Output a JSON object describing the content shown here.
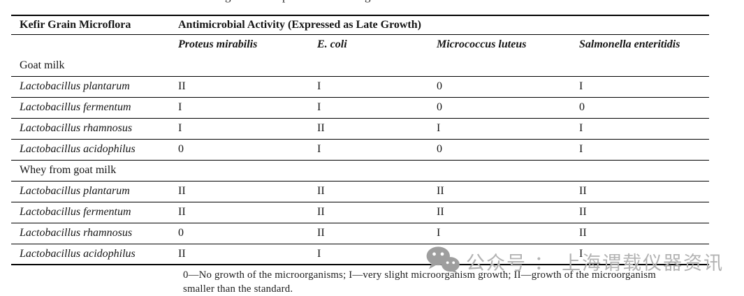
{
  "clipped_caption": {
    "fragments": [
      {
        "char": "g"
      },
      {
        "char": "p"
      },
      {
        "char": "g"
      }
    ]
  },
  "table": {
    "col1_header": "Kefir Grain Microflora",
    "group_header": "Antimicrobial Activity (Expressed as Late Growth)",
    "columns": [
      "Proteus mirabilis",
      "E. coli",
      "Micrococcus luteus",
      "Salmonella enteritidis"
    ],
    "sections": [
      {
        "label": "Goat milk",
        "rows": [
          {
            "name": "Lactobacillus plantarum",
            "values": [
              "II",
              "I",
              "0",
              "I"
            ]
          },
          {
            "name": "Lactobacillus fermentum",
            "values": [
              "I",
              "I",
              "0",
              "0"
            ]
          },
          {
            "name": "Lactobacillus rhamnosus",
            "values": [
              "I",
              "II",
              "I",
              "I"
            ]
          },
          {
            "name": "Lactobacillus acidophilus",
            "values": [
              "0",
              "I",
              "0",
              "I"
            ]
          }
        ]
      },
      {
        "label": "Whey from goat milk",
        "rows": [
          {
            "name": "Lactobacillus plantarum",
            "values": [
              "II",
              "II",
              "II",
              "II"
            ]
          },
          {
            "name": "Lactobacillus fermentum",
            "values": [
              "II",
              "II",
              "II",
              "II"
            ]
          },
          {
            "name": "Lactobacillus rhamnosus",
            "values": [
              "0",
              "II",
              "I",
              "II"
            ]
          },
          {
            "name": "Lactobacillus acidophilus",
            "values": [
              "II",
              "I",
              "I",
              "I"
            ]
          }
        ]
      }
    ]
  },
  "footnote": {
    "line1": "0—No growth of the microorganisms; I—very slight microorganism growth; II—growth of the microorganism",
    "line2": "smaller than the standard."
  },
  "watermark": {
    "icon": "wechat-icon",
    "text": "公众号 ： 上海谓载仪器资讯",
    "color": "#b3b3b3"
  }
}
